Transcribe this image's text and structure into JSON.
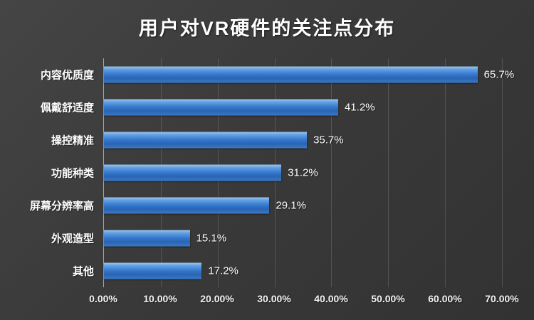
{
  "chart_data": {
    "type": "bar",
    "orientation": "horizontal",
    "title": "用户对VR硬件的关注点分布",
    "categories": [
      "内容优质度",
      "佩戴舒适度",
      "操控精准",
      "功能种类",
      "屏幕分辨率高",
      "外观造型",
      "其他"
    ],
    "values": [
      65.7,
      41.2,
      35.7,
      31.2,
      29.1,
      15.1,
      17.2
    ],
    "value_labels": [
      "65.7%",
      "41.2%",
      "35.7%",
      "31.2%",
      "29.1%",
      "15.1%",
      "17.2%"
    ],
    "x_ticks": [
      "0.00%",
      "10.00%",
      "20.00%",
      "30.00%",
      "40.00%",
      "50.00%",
      "60.00%",
      "70.00%"
    ],
    "xlim": [
      0,
      70
    ],
    "grid": "vertical",
    "legend": "none",
    "colors": {
      "background": "#3a3a3a",
      "bar_highlight": "#9cc6ef",
      "bar_main": "#3578cd",
      "bar_shadow": "#2a64b3",
      "text": "#ffffff",
      "gridline": "rgba(255,255,255,0.14)",
      "axis_line": "#a8a8a8"
    }
  }
}
